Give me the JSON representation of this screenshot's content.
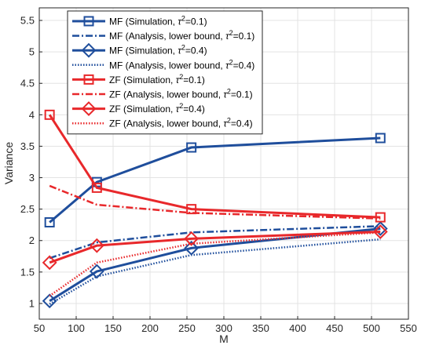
{
  "chart_data": {
    "type": "line",
    "xlabel": "M",
    "ylabel": "Variance",
    "xlim": [
      50,
      550
    ],
    "ylim": [
      0.75,
      5.7
    ],
    "xticks": [
      50,
      100,
      150,
      200,
      250,
      300,
      350,
      400,
      450,
      500,
      550
    ],
    "yticks": [
      1,
      1.5,
      2,
      2.5,
      3,
      3.5,
      4,
      4.5,
      5,
      5.5
    ],
    "grid": true,
    "legend_position": "top-left",
    "colors": {
      "mf": "#1f4e9c",
      "zf": "#e8282b"
    },
    "series": [
      {
        "name": "MF (Simulation,  τ²=0.1)",
        "legend": {
          "prefix": "MF (Simulation,  ",
          "sup": "2",
          "suffix": "=0.1)"
        },
        "group": "mf",
        "line": "solid",
        "marker": "square",
        "x": [
          64,
          128,
          256,
          512
        ],
        "y": [
          2.29,
          2.93,
          3.48,
          3.63
        ]
      },
      {
        "name": "MF (Analysis, lower bound,  τ²=0.1)",
        "legend": {
          "prefix": "MF (Analysis, lower bound,  ",
          "sup": "2",
          "suffix": "=0.1)"
        },
        "group": "mf",
        "line": "dashdot",
        "marker": "none",
        "x": [
          64,
          128,
          256,
          512
        ],
        "y": [
          1.72,
          1.97,
          2.13,
          2.23
        ]
      },
      {
        "name": "MF (Simulation,  τ²=0.4)",
        "legend": {
          "prefix": "MF (Simulation,  ",
          "sup": "2",
          "suffix": "=0.4)"
        },
        "group": "mf",
        "line": "solid",
        "marker": "diamond",
        "x": [
          64,
          128,
          256,
          512
        ],
        "y": [
          1.04,
          1.51,
          1.88,
          2.19
        ]
      },
      {
        "name": "MF (Analysis, lower bound,  τ²=0.4)",
        "legend": {
          "prefix": "MF (Analysis, lower bound,  ",
          "sup": "2",
          "suffix": "=0.4)"
        },
        "group": "mf",
        "line": "dotted",
        "marker": "none",
        "x": [
          64,
          128,
          256,
          512
        ],
        "y": [
          0.99,
          1.43,
          1.77,
          2.02
        ]
      },
      {
        "name": "ZF (Simulation,  τ²=0.1)",
        "legend": {
          "prefix": "ZF (Simulation,  ",
          "sup": "2",
          "suffix": "=0.1)"
        },
        "group": "zf",
        "line": "solid",
        "marker": "square",
        "x": [
          64,
          128,
          256,
          512
        ],
        "y": [
          4.0,
          2.84,
          2.5,
          2.37
        ]
      },
      {
        "name": "ZF (Analysis, lower bound,  τ²=0.1)",
        "legend": {
          "prefix": "ZF (Analysis, lower bound,  ",
          "sup": "2",
          "suffix": "=0.1)"
        },
        "group": "zf",
        "line": "dashdot",
        "marker": "none",
        "x": [
          64,
          128,
          256,
          512
        ],
        "y": [
          2.87,
          2.57,
          2.44,
          2.35
        ]
      },
      {
        "name": "ZF (Simulation,  τ²=0.4)",
        "legend": {
          "prefix": "ZF (Simulation,  ",
          "sup": "2",
          "suffix": "=0.4)"
        },
        "group": "zf",
        "line": "solid",
        "marker": "diamond",
        "x": [
          64,
          128,
          256,
          512
        ],
        "y": [
          1.65,
          1.92,
          2.03,
          2.14
        ]
      },
      {
        "name": "ZF (Analysis, lower bound,  τ²=0.4)",
        "legend": {
          "prefix": "ZF (Analysis, lower bound,  ",
          "sup": "2",
          "suffix": "=0.4)"
        },
        "group": "zf",
        "line": "dotted",
        "marker": "none",
        "x": [
          64,
          128,
          256,
          512
        ],
        "y": [
          1.12,
          1.65,
          1.95,
          2.13
        ]
      }
    ]
  }
}
